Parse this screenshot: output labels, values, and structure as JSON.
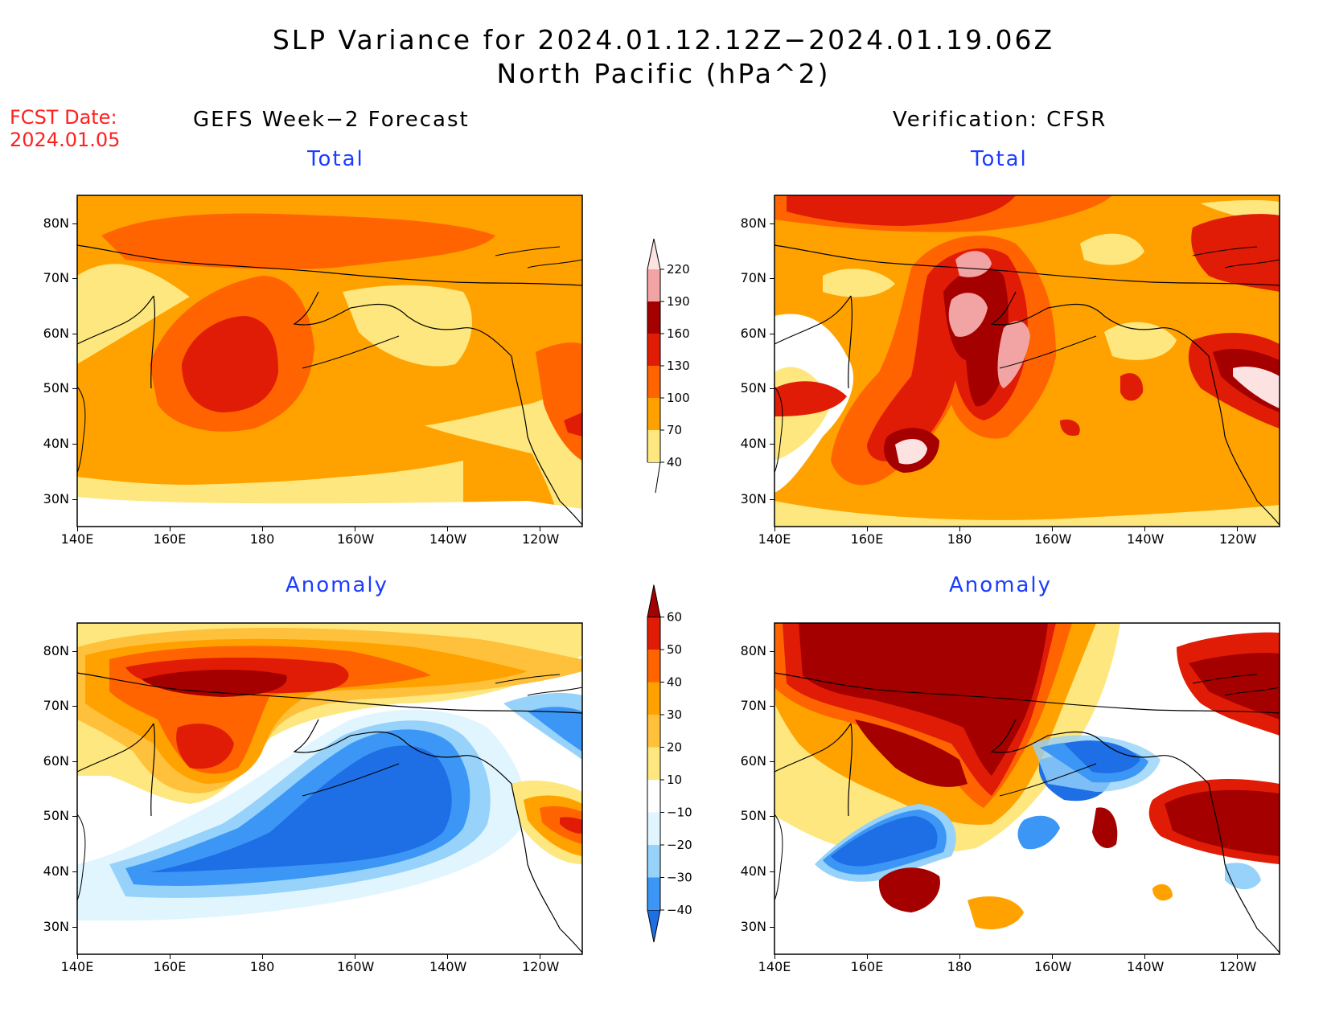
{
  "header": {
    "title_line1": "SLP Variance for 2024.01.12.12Z−2024.01.19.06Z",
    "title_line2": "North Pacific (hPa^2)",
    "fcst_label": "FCST Date:",
    "fcst_date": "2024.01.05"
  },
  "columns": {
    "left_title": "GEFS Week−2 Forecast",
    "right_title": "Verification: CFSR"
  },
  "panels": {
    "total_label": "Total",
    "anomaly_label": "Anomaly"
  },
  "axes": {
    "lon_ticks": [
      "140E",
      "160E",
      "180",
      "160W",
      "140W",
      "120W"
    ],
    "lat_ticks": [
      "80N",
      "70N",
      "60N",
      "50N",
      "40N",
      "30N"
    ]
  },
  "colorbar_total": {
    "levels": [
      "40",
      "70",
      "100",
      "130",
      "160",
      "190",
      "220"
    ],
    "colors": [
      "#fde77e",
      "#ffa200",
      "#ff6400",
      "#e01c06",
      "#a50000",
      "#f2a4a4",
      "#fde2e2"
    ]
  },
  "colorbar_anomaly": {
    "levels": [
      "−40",
      "−30",
      "−20",
      "−10",
      "10",
      "20",
      "30",
      "40",
      "50",
      "60"
    ],
    "colors": [
      "#1e6ee6",
      "#3c96f5",
      "#96d2fa",
      "#e1f5ff",
      "#ffffff",
      "#fde77e",
      "#ffc13c",
      "#ffa200",
      "#ff6400",
      "#e01c06",
      "#a50000"
    ]
  },
  "palette": {
    "total_bg": "#ffa200",
    "yellow": "#fde77e",
    "orange": "#ffa200",
    "deep_orange": "#ff6400",
    "red": "#e01c06",
    "dark_red": "#a50000",
    "pink": "#f2a4a4",
    "light_pink": "#fde2e2",
    "blue_dark": "#1e6ee6",
    "blue": "#3c96f5",
    "blue_light": "#96d2fa",
    "blue_pale": "#e1f5ff",
    "gold": "#ffc13c"
  }
}
